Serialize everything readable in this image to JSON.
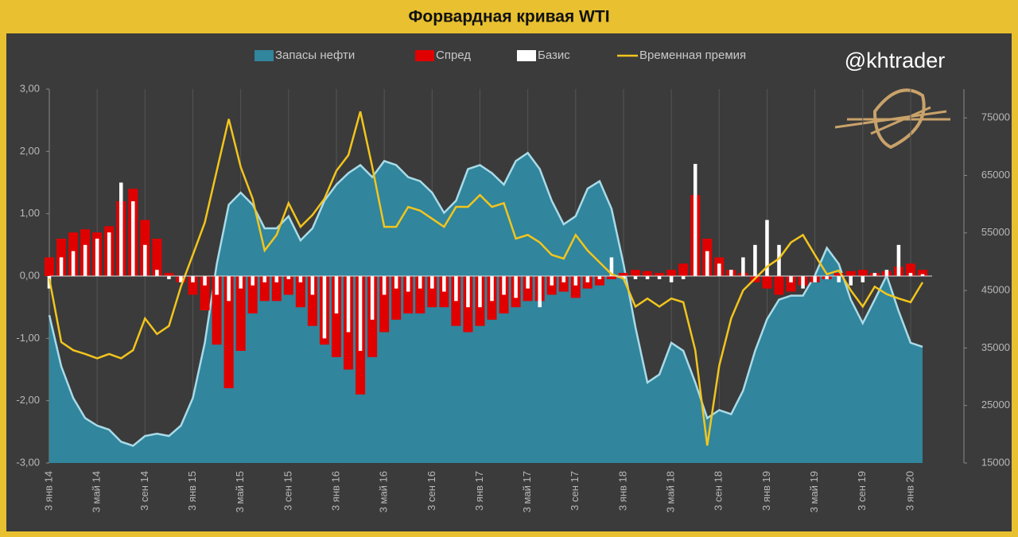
{
  "chart_data": {
    "type": "combo",
    "title": "Форвардная кривая WTI",
    "annotation": "@khtrader",
    "legend": "top",
    "categories": [
      "3 янв 14",
      null,
      null,
      null,
      "3 май 14",
      null,
      null,
      null,
      "3 сен 14",
      null,
      null,
      null,
      "3 янв 15",
      null,
      null,
      null,
      "3 май 15",
      null,
      null,
      null,
      "3 сен 15",
      null,
      null,
      null,
      "3 янв 16",
      null,
      null,
      null,
      "3 май 16",
      null,
      null,
      null,
      "3 сен 16",
      null,
      null,
      null,
      "3 янв 17",
      null,
      null,
      null,
      "3 май 17",
      null,
      null,
      null,
      "3 сен 17",
      null,
      null,
      null,
      "3 янв 18",
      null,
      null,
      null,
      "3 май 18",
      null,
      null,
      null,
      "3 сен 18",
      null,
      null,
      null,
      "3 янв 19",
      null,
      null,
      null,
      "3 май 19",
      null,
      null,
      null,
      "3 сен 19",
      null,
      null,
      null,
      "3 янв 20",
      null
    ],
    "ylim": [
      -3,
      3
    ],
    "yticks": [
      {
        "value": -3,
        "label": "-3,00"
      },
      {
        "value": -2,
        "label": "-2,00"
      },
      {
        "value": -1,
        "label": "-1,00"
      },
      {
        "value": 0,
        "label": "0,00"
      },
      {
        "value": 1,
        "label": "1,00"
      },
      {
        "value": 2,
        "label": "2,00"
      },
      {
        "value": 3,
        "label": "3,00"
      }
    ],
    "y2lim": [
      15000,
      80000
    ],
    "y2ticks": [
      15000,
      25000,
      35000,
      45000,
      55000,
      65000,
      75000
    ],
    "grid": "x",
    "series": [
      {
        "name": "Запасы нефти",
        "type": "area",
        "axis": "y2",
        "color": "#31859c",
        "line_color": "#a9dbe8",
        "values": [
          40700,
          31800,
          26300,
          22800,
          21500,
          20800,
          18700,
          18000,
          19700,
          20100,
          19700,
          21500,
          26300,
          35900,
          49600,
          59900,
          62000,
          59900,
          55800,
          55800,
          57900,
          53700,
          55800,
          60600,
          63400,
          65400,
          66800,
          64700,
          67500,
          66800,
          64700,
          64000,
          62000,
          58500,
          60600,
          66100,
          66800,
          65400,
          63400,
          67500,
          68900,
          66100,
          60600,
          56500,
          57900,
          62700,
          64000,
          59200,
          49600,
          38600,
          29000,
          30400,
          35900,
          34500,
          29000,
          22800,
          24200,
          23500,
          27600,
          34500,
          40000,
          43400,
          44100,
          44100,
          47600,
          52400,
          49600,
          43400,
          39300,
          43400,
          47600,
          41400,
          35900,
          35200
        ]
      },
      {
        "name": "Спред",
        "type": "bar",
        "color": "#e00000",
        "values": [
          0.3,
          0.6,
          0.7,
          0.75,
          0.7,
          0.8,
          1.2,
          1.4,
          0.9,
          0.6,
          0.05,
          -0.1,
          -0.3,
          -0.55,
          -1.1,
          -1.8,
          -1.2,
          -0.6,
          -0.4,
          -0.4,
          -0.3,
          -0.5,
          -0.8,
          -1.1,
          -1.3,
          -1.5,
          -1.9,
          -1.3,
          -0.9,
          -0.7,
          -0.6,
          -0.6,
          -0.5,
          -0.5,
          -0.8,
          -0.9,
          -0.8,
          -0.7,
          -0.6,
          -0.5,
          -0.4,
          -0.4,
          -0.3,
          -0.25,
          -0.35,
          -0.2,
          -0.15,
          -0.05,
          0.05,
          0.1,
          0.08,
          0.05,
          0.1,
          0.2,
          1.3,
          0.6,
          0.3,
          0.1,
          0.05,
          -0.1,
          -0.2,
          -0.3,
          -0.25,
          -0.15,
          -0.1,
          -0.05,
          0.05,
          0.08,
          0.1,
          0.05,
          0.08,
          0.15,
          0.2,
          0.1
        ]
      },
      {
        "name": "Базис",
        "type": "bar",
        "color": "#ffffff",
        "values": [
          -0.2,
          0.3,
          0.4,
          0.5,
          0.6,
          0.7,
          1.5,
          1.2,
          0.5,
          0.1,
          -0.05,
          -0.1,
          -0.1,
          -0.15,
          -0.3,
          -0.4,
          -0.2,
          -0.15,
          -0.1,
          -0.1,
          -0.05,
          -0.1,
          -0.3,
          -1.0,
          -0.6,
          -0.9,
          -1.2,
          -0.7,
          -0.3,
          -0.2,
          -0.25,
          -0.2,
          -0.2,
          -0.25,
          -0.4,
          -0.5,
          -0.5,
          -0.4,
          -0.3,
          -0.35,
          -0.2,
          -0.5,
          -0.15,
          -0.1,
          -0.15,
          -0.1,
          -0.05,
          0.3,
          -0.05,
          -0.05,
          -0.05,
          -0.05,
          -0.1,
          -0.05,
          1.8,
          0.4,
          0.2,
          0.1,
          0.3,
          0.5,
          0.9,
          0.5,
          -0.1,
          -0.2,
          -0.1,
          -0.05,
          -0.1,
          -0.15,
          -0.1,
          0.05,
          0.1,
          0.5,
          0.05,
          0.03
        ]
      },
      {
        "name": "Временная премия",
        "type": "line",
        "color": "#f2c51d",
        "values": [
          -0.04,
          -1.06,
          -1.19,
          -1.25,
          -1.32,
          -1.25,
          -1.32,
          -1.19,
          -0.68,
          -0.93,
          -0.8,
          -0.17,
          0.34,
          0.86,
          1.69,
          2.52,
          1.75,
          1.24,
          0.41,
          0.66,
          1.17,
          0.79,
          0.98,
          1.24,
          1.69,
          1.94,
          2.64,
          1.75,
          0.79,
          0.79,
          1.11,
          1.05,
          0.92,
          0.79,
          1.11,
          1.11,
          1.3,
          1.11,
          1.17,
          0.6,
          0.66,
          0.54,
          0.34,
          0.28,
          0.66,
          0.41,
          0.22,
          0.03,
          -0.04,
          -0.49,
          -0.36,
          -0.49,
          -0.36,
          -0.42,
          -1.19,
          -2.72,
          -1.44,
          -0.68,
          -0.23,
          -0.04,
          0.15,
          0.28,
          0.54,
          0.66,
          0.34,
          0.03,
          0.09,
          -0.23,
          -0.49,
          -0.17,
          -0.29,
          -0.36,
          -0.42,
          -0.1
        ]
      }
    ]
  }
}
